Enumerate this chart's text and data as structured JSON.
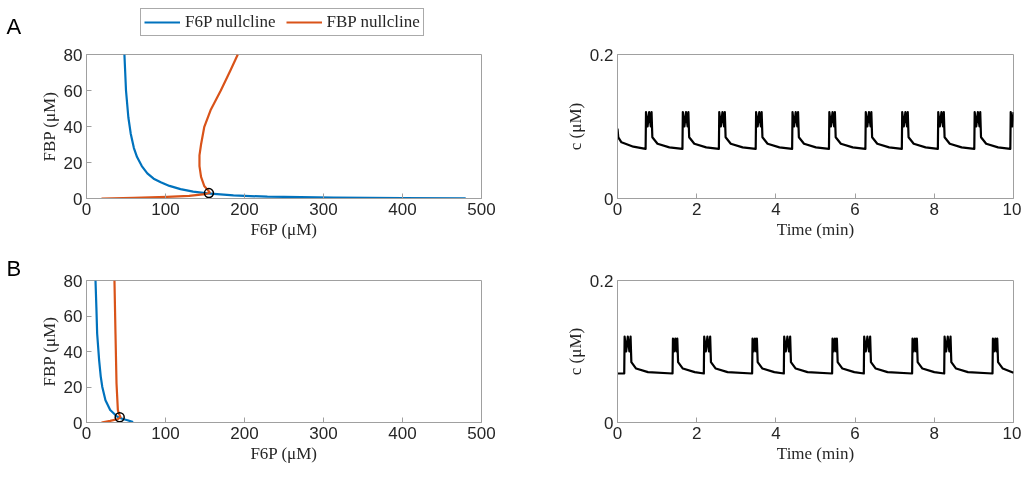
{
  "chart_data": [
    {
      "type": "line",
      "xlabel": "F6P (μM)",
      "ylabel": "FBP (μM)",
      "annotations": [
        "A"
      ],
      "legend": "top",
      "xlim": [
        0,
        500
      ],
      "ylim": [
        0,
        80
      ],
      "xticks": [
        0,
        100,
        200,
        300,
        400,
        500
      ],
      "yticks": [
        0,
        20,
        40,
        60,
        80
      ],
      "marker": "none",
      "line_style": "solid",
      "grid": false,
      "series": [
        {
          "name": "F6P nullcline",
          "color": "#0072bd",
          "x": [
            48,
            50,
            53,
            56,
            60,
            64,
            70,
            77,
            85,
            94,
            105,
            119,
            135,
            153,
            186,
            229,
            313,
            400,
            480
          ],
          "values": [
            80,
            60,
            45,
            36,
            28,
            23,
            18,
            14,
            11,
            9,
            7,
            5.2,
            3.8,
            2.8,
            1.7,
            1,
            0.5,
            0.2,
            0.1
          ]
        },
        {
          "name": "FBP nullcline",
          "color": "#d95319",
          "x": [
            19,
            60,
            102,
            130,
            150,
            156,
            154,
            149,
            145,
            143,
            143,
            145,
            149,
            157,
            170,
            182,
            191.5
          ],
          "values": [
            0,
            0.3,
            0.9,
            1.5,
            2.4,
            3.2,
            4.5,
            7,
            12,
            18,
            24,
            30,
            39.6,
            49,
            60,
            71,
            80
          ]
        },
        {
          "type": "scatter",
          "marker": "circle",
          "color": "#000000",
          "x": [
            155
          ],
          "values": [
            3
          ]
        }
      ]
    },
    {
      "type": "line",
      "xlabel": "Time (min)",
      "ylabel": "c (μM)",
      "xlim": [
        0,
        10
      ],
      "ylim": [
        0,
        0.2
      ],
      "xticks": [
        0,
        2,
        4,
        6,
        8,
        10
      ],
      "yticks": [
        0,
        0.2
      ],
      "marker": "none",
      "line_style": "solid",
      "grid": false,
      "series": [
        {
          "color": "#000000",
          "x": [
            0,
            0.02,
            0.1,
            0.4,
            0.71,
            0.72,
            0.76,
            0.8,
            0.84,
            0.86,
            0.88,
            1.01,
            1.31,
            1.64,
            1.65,
            1.69,
            1.73,
            1.77,
            1.79,
            1.81,
            1.94,
            2.24,
            2.56,
            2.57,
            2.61,
            2.65,
            2.69,
            2.71,
            2.73,
            2.86,
            3.16,
            3.49,
            3.5,
            3.54,
            3.58,
            3.62,
            3.64,
            3.66,
            3.79,
            4.09,
            4.41,
            4.42,
            4.46,
            4.5,
            4.54,
            4.56,
            4.58,
            4.71,
            5.01,
            5.34,
            5.35,
            5.39,
            5.43,
            5.47,
            5.49,
            5.51,
            5.64,
            5.94,
            6.26,
            6.27,
            6.31,
            6.35,
            6.39,
            6.41,
            6.43,
            6.56,
            6.86,
            7.18,
            7.19,
            7.23,
            7.27,
            7.31,
            7.33,
            7.35,
            7.48,
            7.78,
            8.09,
            8.1,
            8.14,
            8.18,
            8.22,
            8.24,
            8.26,
            8.39,
            8.69,
            9.01,
            9.02,
            9.06,
            9.1,
            9.14,
            9.16,
            9.18,
            9.31,
            9.61,
            9.92,
            9.93,
            9.97,
            10
          ],
          "values": [
            0.097,
            0.085,
            0.078,
            0.072,
            0.069,
            0.12,
            0.1,
            0.12,
            0.1,
            0.12,
            0.085,
            0.076,
            0.071,
            0.069,
            0.12,
            0.1,
            0.12,
            0.1,
            0.12,
            0.085,
            0.076,
            0.071,
            0.069,
            0.12,
            0.1,
            0.12,
            0.1,
            0.12,
            0.085,
            0.076,
            0.071,
            0.069,
            0.12,
            0.1,
            0.12,
            0.1,
            0.12,
            0.085,
            0.076,
            0.071,
            0.069,
            0.12,
            0.1,
            0.12,
            0.1,
            0.12,
            0.085,
            0.076,
            0.071,
            0.069,
            0.12,
            0.1,
            0.12,
            0.1,
            0.12,
            0.085,
            0.076,
            0.071,
            0.069,
            0.12,
            0.1,
            0.12,
            0.1,
            0.12,
            0.085,
            0.076,
            0.071,
            0.069,
            0.12,
            0.1,
            0.12,
            0.1,
            0.12,
            0.085,
            0.076,
            0.071,
            0.069,
            0.12,
            0.1,
            0.12,
            0.1,
            0.12,
            0.085,
            0.076,
            0.071,
            0.069,
            0.12,
            0.1,
            0.12,
            0.1,
            0.12,
            0.085,
            0.076,
            0.071,
            0.069,
            0.12,
            0.1,
            0.12
          ]
        }
      ]
    },
    {
      "type": "line",
      "xlabel": "F6P (μM)",
      "ylabel": "FBP (μM)",
      "annotations": [
        "B"
      ],
      "xlim": [
        0,
        500
      ],
      "ylim": [
        0,
        80
      ],
      "xticks": [
        0,
        100,
        200,
        300,
        400,
        500
      ],
      "yticks": [
        0,
        20,
        40,
        60,
        80
      ],
      "marker": "none",
      "line_style": "solid",
      "grid": false,
      "series": [
        {
          "color": "#0072bd",
          "x": [
            11.4,
            12.5,
            13.5,
            16,
            18,
            20,
            24,
            30,
            39,
            46,
            52,
            59
          ],
          "values": [
            80,
            65,
            50,
            35,
            26,
            20,
            12.5,
            7,
            3.2,
            2,
            1.3,
            0.2
          ]
        },
        {
          "color": "#d95319",
          "x": [
            19,
            30,
            40,
            43,
            41,
            39.7,
            38,
            36.7,
            35.4
          ],
          "values": [
            0,
            0.9,
            2,
            3,
            5,
            7,
            22,
            50,
            80
          ]
        },
        {
          "type": "scatter",
          "marker": "circle",
          "color": "#000000",
          "x": [
            42
          ],
          "values": [
            3
          ]
        }
      ]
    },
    {
      "type": "line",
      "xlabel": "Time (min)",
      "ylabel": "c (μM)",
      "xlim": [
        0,
        10
      ],
      "ylim": [
        0,
        0.2
      ],
      "xticks": [
        0,
        2,
        4,
        6,
        8,
        10
      ],
      "yticks": [
        0,
        0.2
      ],
      "marker": "none",
      "line_style": "solid",
      "grid": false,
      "series": [
        {
          "color": "#000000",
          "x": [
            0,
            0.17,
            0.18,
            0.22,
            0.26,
            0.3,
            0.33,
            0.35,
            0.47,
            0.77,
            1.39,
            1.4,
            1.43,
            1.46,
            1.49,
            1.51,
            1.53,
            1.65,
            1.95,
            2.18,
            2.19,
            2.23,
            2.27,
            2.31,
            2.34,
            2.36,
            2.48,
            2.78,
            3.4,
            3.41,
            3.44,
            3.47,
            3.5,
            3.52,
            3.54,
            3.66,
            3.96,
            4.2,
            4.21,
            4.25,
            4.29,
            4.33,
            4.36,
            4.38,
            4.5,
            4.8,
            5.42,
            5.43,
            5.46,
            5.49,
            5.52,
            5.54,
            5.56,
            5.68,
            5.98,
            6.22,
            6.23,
            6.27,
            6.31,
            6.35,
            6.38,
            6.4,
            6.52,
            6.82,
            7.44,
            7.45,
            7.48,
            7.51,
            7.54,
            7.56,
            7.58,
            7.7,
            8.0,
            8.25,
            8.26,
            8.3,
            8.34,
            8.38,
            8.41,
            8.43,
            8.55,
            8.85,
            9.47,
            9.48,
            9.51,
            9.54,
            9.57,
            9.59,
            9.61,
            9.73,
            10
          ],
          "values": [
            0.069,
            0.069,
            0.121,
            0.1,
            0.121,
            0.1,
            0.121,
            0.085,
            0.076,
            0.071,
            0.069,
            0.118,
            0.1,
            0.118,
            0.1,
            0.118,
            0.085,
            0.076,
            0.071,
            0.069,
            0.121,
            0.1,
            0.121,
            0.1,
            0.121,
            0.085,
            0.076,
            0.071,
            0.069,
            0.118,
            0.1,
            0.118,
            0.1,
            0.118,
            0.085,
            0.076,
            0.071,
            0.069,
            0.121,
            0.1,
            0.121,
            0.1,
            0.121,
            0.085,
            0.076,
            0.071,
            0.069,
            0.118,
            0.1,
            0.118,
            0.1,
            0.118,
            0.085,
            0.076,
            0.071,
            0.069,
            0.121,
            0.1,
            0.121,
            0.1,
            0.121,
            0.085,
            0.076,
            0.071,
            0.069,
            0.118,
            0.1,
            0.118,
            0.1,
            0.118,
            0.085,
            0.076,
            0.071,
            0.069,
            0.121,
            0.1,
            0.121,
            0.1,
            0.121,
            0.085,
            0.076,
            0.071,
            0.069,
            0.118,
            0.1,
            0.118,
            0.1,
            0.118,
            0.085,
            0.076,
            0.07
          ]
        }
      ]
    }
  ]
}
